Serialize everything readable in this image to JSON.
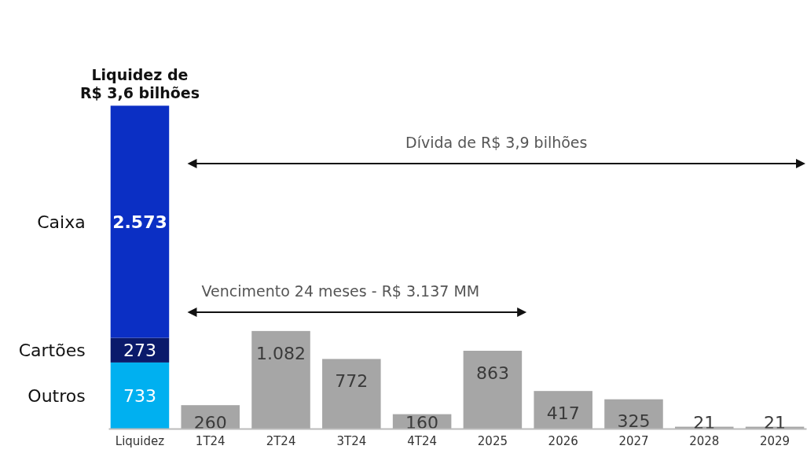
{
  "chart_data": {
    "type": "bar",
    "stacked": true,
    "tick_labels": "x",
    "ylim": [
      0,
      3600
    ],
    "categories": [
      "Liquidez",
      "1T24",
      "2T24",
      "3T24",
      "4T24",
      "2025",
      "2026",
      "2027",
      "2028",
      "2029"
    ],
    "series": [
      {
        "name": "Outros",
        "color": "#00b0f0",
        "values": [
          733,
          null,
          null,
          null,
          null,
          null,
          null,
          null,
          null,
          null
        ],
        "value_labels": [
          "733",
          null,
          null,
          null,
          null,
          null,
          null,
          null,
          null,
          null
        ]
      },
      {
        "name": "Cartões",
        "color": "#0a1a6b",
        "values": [
          273,
          null,
          null,
          null,
          null,
          null,
          null,
          null,
          null,
          null
        ],
        "value_labels": [
          "273",
          null,
          null,
          null,
          null,
          null,
          null,
          null,
          null,
          null
        ]
      },
      {
        "name": "Caixa",
        "color": "#0b2fc4",
        "values": [
          2573,
          null,
          null,
          null,
          null,
          null,
          null,
          null,
          null,
          null
        ],
        "value_labels": [
          "2.573",
          null,
          null,
          null,
          null,
          null,
          null,
          null,
          null,
          null
        ]
      },
      {
        "color": "#a6a6a6",
        "values": [
          null,
          260,
          1082,
          772,
          160,
          863,
          417,
          325,
          21,
          21
        ],
        "value_labels": [
          null,
          "260",
          "1.082",
          "772",
          "160",
          "863",
          "417",
          "325",
          "21",
          "21"
        ]
      }
    ],
    "annotations": [
      "Liquidez de R$ 3,6 bilhões",
      "Dívida de R$ 3,9 bilhões",
      "Vencimento 24 meses - R$ 3.137 MM"
    ]
  }
}
